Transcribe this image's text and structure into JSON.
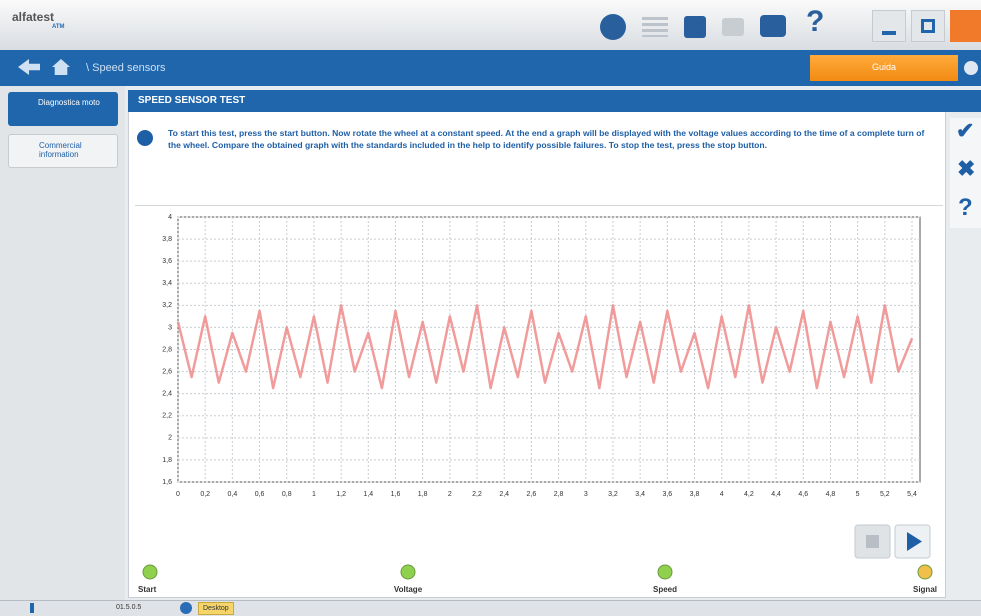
{
  "header": {
    "logo": "alfatest",
    "logo_sub": "ATM"
  },
  "breadcrumb": "\\ Speed sensors",
  "action_button": "Guida",
  "sidebar": [
    "Diagnostica moto",
    "Commercial information"
  ],
  "panel": {
    "title": "SPEED SENSOR TEST",
    "info": "To start this test, press the start button. Now rotate the wheel at a constant speed. At the end a graph will be displayed with the voltage values according to the time of a complete turn of the wheel. Compare the obtained graph with the standards included in the help to identify possible failures.   To stop the test, press the stop button."
  },
  "chart_data": {
    "type": "line",
    "x": [
      0,
      0.1,
      0.2,
      0.3,
      0.4,
      0.5,
      0.6,
      0.7,
      0.8,
      0.9,
      1,
      1.1,
      1.2,
      1.3,
      1.4,
      1.5,
      1.6,
      1.7,
      1.8,
      1.9,
      2,
      2.1,
      2.2,
      2.3,
      2.4,
      2.5,
      2.6,
      2.7,
      2.8,
      2.9,
      3,
      3.1,
      3.2,
      3.3,
      3.4,
      3.5,
      3.6,
      3.7,
      3.8,
      3.9,
      4,
      4.1,
      4.2,
      4.3,
      4.4,
      4.5,
      4.6,
      4.7,
      4.8,
      4.9,
      5,
      5.1,
      5.2,
      5.3,
      5.4
    ],
    "values": [
      3.05,
      2.55,
      3.1,
      2.5,
      2.95,
      2.6,
      3.15,
      2.45,
      3.0,
      2.55,
      3.1,
      2.5,
      3.2,
      2.6,
      2.95,
      2.45,
      3.15,
      2.55,
      3.05,
      2.5,
      3.1,
      2.6,
      3.2,
      2.45,
      3.0,
      2.55,
      3.15,
      2.5,
      2.95,
      2.6,
      3.1,
      2.45,
      3.2,
      2.55,
      3.05,
      2.5,
      3.15,
      2.6,
      2.95,
      2.45,
      3.1,
      2.55,
      3.2,
      2.5,
      3.0,
      2.6,
      3.15,
      2.45,
      3.05,
      2.55,
      3.1,
      2.5,
      3.2,
      2.6,
      2.9
    ],
    "color": "#ef8a8a",
    "xlim": [
      0,
      5.4
    ],
    "ylim": [
      1.6,
      4
    ],
    "xticks": [
      0,
      {
        "value": 0.2,
        "label": "0,2"
      },
      {
        "value": 0.4,
        "label": "0,4"
      },
      {
        "value": 0.6,
        "label": "0,6"
      },
      {
        "value": 0.8,
        "label": "0,8"
      },
      1,
      {
        "value": 1.2,
        "label": "1,2"
      },
      {
        "value": 1.4,
        "label": "1,4"
      },
      {
        "value": 1.6,
        "label": "1,6"
      },
      {
        "value": 1.8,
        "label": "1,8"
      },
      2,
      {
        "value": 2.2,
        "label": "2,2"
      },
      {
        "value": 2.4,
        "label": "2,4"
      },
      {
        "value": 2.6,
        "label": "2,6"
      },
      {
        "value": 2.8,
        "label": "2,8"
      },
      3,
      {
        "value": 3.2,
        "label": "3,2"
      },
      {
        "value": 3.4,
        "label": "3,4"
      },
      {
        "value": 3.6,
        "label": "3,6"
      },
      {
        "value": 3.8,
        "label": "3,8"
      },
      4,
      {
        "value": 4.2,
        "label": "4,2"
      },
      {
        "value": 4.4,
        "label": "4,4"
      },
      {
        "value": 4.6,
        "label": "4,6"
      },
      {
        "value": 4.8,
        "label": "4,8"
      },
      5,
      {
        "value": 5.2,
        "label": "5,2"
      },
      {
        "value": 5.4,
        "label": "5,4"
      }
    ],
    "yticks": [
      {
        "value": 1.6,
        "label": "1,6"
      },
      {
        "value": 1.8,
        "label": "1,8"
      },
      2,
      {
        "value": 2.2,
        "label": "2,2"
      },
      {
        "value": 2.4,
        "label": "2,4"
      },
      {
        "value": 2.6,
        "label": "2,6"
      },
      {
        "value": 2.8,
        "label": "2,8"
      },
      3,
      {
        "value": 3.2,
        "label": "3,2"
      },
      {
        "value": 3.4,
        "label": "3,4"
      },
      {
        "value": 3.6,
        "label": "3,6"
      },
      {
        "value": 3.8,
        "label": "3,8"
      },
      4
    ],
    "grid": true
  },
  "indicators": [
    "Start",
    "Voltage",
    "Speed",
    "Signal"
  ],
  "status": {
    "version": "01.5.0.5",
    "task": "Desktop"
  }
}
